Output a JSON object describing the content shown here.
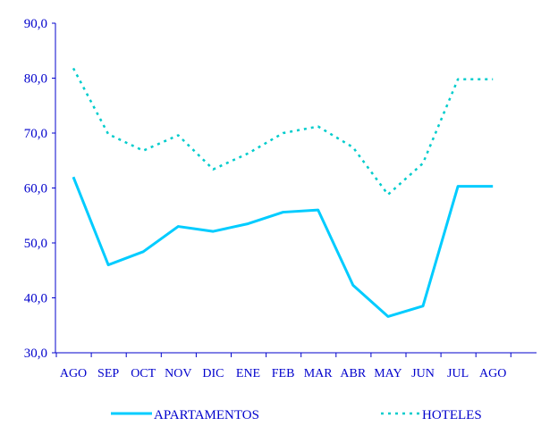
{
  "chart_data": {
    "type": "line",
    "categories": [
      "AGO",
      "SEP",
      "OCT",
      "NOV",
      "DIC",
      "ENE",
      "FEB",
      "MAR",
      "ABR",
      "MAY",
      "JUN",
      "JUL",
      "AGO"
    ],
    "series": [
      {
        "name": "APARTAMENTOS",
        "values": [
          62.0,
          46.0,
          48.4,
          53.0,
          52.1,
          53.5,
          55.6,
          56.0,
          42.3,
          36.6,
          38.5,
          60.3,
          60.3
        ],
        "style": "solid",
        "color": "#00ccff"
      },
      {
        "name": "HOTELES",
        "values": [
          81.8,
          69.8,
          66.8,
          69.6,
          63.4,
          66.3,
          70.0,
          71.2,
          67.4,
          58.8,
          64.5,
          79.8,
          79.8
        ],
        "style": "dotted",
        "color": "#00cccc"
      }
    ],
    "y_ticks": [
      "30,0",
      "40,0",
      "50,0",
      "60,0",
      "70,0",
      "80,0",
      "90,0"
    ],
    "ylim": [
      30,
      90
    ],
    "title": "",
    "xlabel": "",
    "ylabel": "",
    "grid": false,
    "legend": "bottom",
    "label_color": "#0000cc",
    "axis_color": "#0000cc"
  }
}
